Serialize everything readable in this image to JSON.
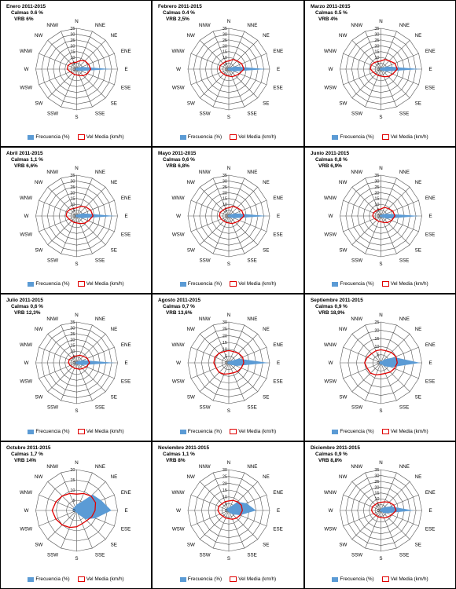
{
  "colors": {
    "frequency": "#5b9bd5",
    "velocity": "#e00000",
    "grid": "#555555"
  },
  "legend": {
    "frequency_label": "Frecuencia (%)",
    "velocity_label": "Vel Media (km/h)"
  },
  "chart_data": [
    {
      "type": "radar",
      "title": "Enero 2011-2015",
      "calmas": "Calmas 0.6 %",
      "vrb": "VRB 6%",
      "directions": [
        "N",
        "NNE",
        "NE",
        "ENE",
        "E",
        "ESE",
        "SE",
        "SSE",
        "S",
        "SSW",
        "SW",
        "WSW",
        "W",
        "WNW",
        "NW",
        "NNW"
      ],
      "rmax": 35,
      "ticks": [
        0,
        5,
        10,
        15,
        20,
        25,
        30,
        35
      ],
      "series": [
        {
          "name": "Frecuencia (%)",
          "values": [
            1,
            1,
            2,
            5,
            30,
            4,
            2,
            1,
            1,
            1,
            1,
            1,
            2,
            1,
            1,
            1
          ]
        },
        {
          "name": "Vel Media (km/h)",
          "values": [
            6,
            8,
            10,
            11,
            12,
            10,
            8,
            6,
            5,
            5,
            5,
            6,
            8,
            8,
            7,
            6
          ]
        }
      ]
    },
    {
      "type": "radar",
      "title": "Febrero 2011-2015",
      "calmas": "Calmas 0.4 %",
      "vrb": "VRB 2,5%",
      "directions": [
        "N",
        "NNE",
        "NE",
        "ENE",
        "E",
        "ESE",
        "SE",
        "SSE",
        "S",
        "SSW",
        "SW",
        "WSW",
        "W",
        "WNW",
        "NW",
        "NNW"
      ],
      "rmax": 35,
      "ticks": [
        0,
        5,
        10,
        15,
        20,
        25,
        30,
        35
      ],
      "series": [
        {
          "name": "Frecuencia (%)",
          "values": [
            1,
            1,
            2,
            6,
            32,
            5,
            2,
            1,
            1,
            1,
            1,
            1,
            1,
            1,
            1,
            1
          ]
        },
        {
          "name": "Vel Media (km/h)",
          "values": [
            7,
            9,
            10,
            12,
            13,
            10,
            8,
            7,
            6,
            6,
            6,
            7,
            8,
            8,
            7,
            7
          ]
        }
      ]
    },
    {
      "type": "radar",
      "title": "Marzo 2011-2015",
      "calmas": "Calmas 0.5 %",
      "vrb": "VRB 4%",
      "directions": [
        "N",
        "NNE",
        "NE",
        "ENE",
        "E",
        "ESE",
        "SE",
        "SSE",
        "S",
        "SSW",
        "SW",
        "WSW",
        "W",
        "WNW",
        "NW",
        "NNW"
      ],
      "rmax": 35,
      "ticks": [
        0,
        5,
        10,
        15,
        20,
        25,
        30,
        35
      ],
      "series": [
        {
          "name": "Frecuencia (%)",
          "values": [
            1,
            1,
            2,
            6,
            34,
            5,
            2,
            1,
            1,
            1,
            1,
            1,
            1,
            1,
            1,
            1
          ]
        },
        {
          "name": "Vel Media (km/h)",
          "values": [
            7,
            9,
            10,
            13,
            14,
            11,
            9,
            7,
            6,
            6,
            6,
            7,
            9,
            9,
            8,
            7
          ]
        }
      ]
    },
    {
      "type": "radar",
      "title": "Abril 2011-2015",
      "calmas": "Calmas 1,1 %",
      "vrb": "VRB 6,6%",
      "directions": [
        "N",
        "NNE",
        "NE",
        "ENE",
        "E",
        "ESE",
        "SE",
        "SSE",
        "S",
        "SSW",
        "SW",
        "WSW",
        "W",
        "WNW",
        "NW",
        "NNW"
      ],
      "rmax": 35,
      "ticks": [
        0,
        5,
        10,
        15,
        20,
        25,
        30,
        35
      ],
      "series": [
        {
          "name": "Frecuencia (%)",
          "values": [
            1,
            1,
            2,
            6,
            33,
            5,
            2,
            1,
            1,
            1,
            1,
            1,
            1,
            1,
            1,
            1
          ]
        },
        {
          "name": "Vel Media (km/h)",
          "values": [
            7,
            9,
            11,
            13,
            14,
            11,
            9,
            7,
            6,
            6,
            6,
            7,
            9,
            9,
            8,
            7
          ]
        }
      ]
    },
    {
      "type": "radar",
      "title": "Mayo 2011-2015",
      "calmas": "Calmas 0,6 %",
      "vrb": "VRB 6,8%",
      "directions": [
        "N",
        "NNE",
        "NE",
        "ENE",
        "E",
        "ESE",
        "SE",
        "SSE",
        "S",
        "SSW",
        "SW",
        "WSW",
        "W",
        "WNW",
        "NW",
        "NNW"
      ],
      "rmax": 35,
      "ticks": [
        0,
        5,
        10,
        15,
        20,
        25,
        30,
        35
      ],
      "series": [
        {
          "name": "Frecuencia (%)",
          "values": [
            1,
            1,
            2,
            6,
            33,
            5,
            2,
            1,
            1,
            1,
            1,
            1,
            1,
            1,
            1,
            1
          ]
        },
        {
          "name": "Vel Media (km/h)",
          "values": [
            7,
            9,
            10,
            12,
            13,
            10,
            8,
            7,
            6,
            6,
            6,
            7,
            8,
            8,
            7,
            7
          ]
        }
      ]
    },
    {
      "type": "radar",
      "title": "Junio 2011-2015",
      "calmas": "Calmas 0,8 %",
      "vrb": "VRB 6,9%",
      "directions": [
        "N",
        "NNE",
        "NE",
        "ENE",
        "E",
        "ESE",
        "SE",
        "SSE",
        "S",
        "SSW",
        "SW",
        "WSW",
        "W",
        "WNW",
        "NW",
        "NNW"
      ],
      "rmax": 35,
      "ticks": [
        0,
        5,
        10,
        15,
        20,
        25,
        30,
        35
      ],
      "series": [
        {
          "name": "Frecuencia (%)",
          "values": [
            1,
            1,
            2,
            5,
            33,
            6,
            2,
            1,
            1,
            1,
            1,
            1,
            1,
            1,
            1,
            1
          ]
        },
        {
          "name": "Vel Media (km/h)",
          "values": [
            6,
            8,
            9,
            11,
            12,
            10,
            8,
            6,
            5,
            5,
            5,
            6,
            7,
            7,
            6,
            6
          ]
        }
      ]
    },
    {
      "type": "radar",
      "title": "Julio 2011-2015",
      "calmas": "Calmas 0,6 %",
      "vrb": "VRB 12,3%",
      "directions": [
        "N",
        "NNE",
        "NE",
        "ENE",
        "E",
        "ESE",
        "SE",
        "SSE",
        "S",
        "SSW",
        "SW",
        "WSW",
        "W",
        "WNW",
        "NW",
        "NNW"
      ],
      "rmax": 35,
      "ticks": [
        0,
        5,
        10,
        15,
        20,
        25,
        30,
        35
      ],
      "series": [
        {
          "name": "Frecuencia (%)",
          "values": [
            1,
            1,
            2,
            6,
            33,
            5,
            2,
            1,
            1,
            1,
            1,
            1,
            1,
            1,
            1,
            1
          ]
        },
        {
          "name": "Vel Media (km/h)",
          "values": [
            6,
            7,
            8,
            10,
            11,
            9,
            7,
            6,
            5,
            5,
            5,
            6,
            7,
            7,
            6,
            6
          ]
        }
      ]
    },
    {
      "type": "radar",
      "title": "Agosto 2011-2015",
      "calmas": "Calmas 0,7 %",
      "vrb": "VRB 13,6%",
      "directions": [
        "N",
        "NNE",
        "NE",
        "ENE",
        "E",
        "ESE",
        "SE",
        "SSE",
        "S",
        "SSW",
        "SW",
        "WSW",
        "W",
        "WNW",
        "NW",
        "NNW"
      ],
      "rmax": 30,
      "ticks": [
        0,
        5,
        10,
        15,
        20,
        25,
        30
      ],
      "series": [
        {
          "name": "Frecuencia (%)",
          "values": [
            1,
            1,
            2,
            8,
            29,
            6,
            2,
            1,
            1,
            1,
            1,
            1,
            1,
            1,
            1,
            1
          ]
        },
        {
          "name": "Vel Media (km/h)",
          "values": [
            9,
            9,
            10,
            11,
            11,
            10,
            9,
            8,
            8,
            9,
            10,
            10,
            11,
            11,
            10,
            9
          ]
        }
      ]
    },
    {
      "type": "radar",
      "title": "Septiembre 2011-2015",
      "calmas": "Calmas 0,9 %",
      "vrb": "VRB 18,9%",
      "directions": [
        "N",
        "NNE",
        "NE",
        "ENE",
        "E",
        "ESE",
        "SE",
        "SSE",
        "S",
        "SSW",
        "SW",
        "WSW",
        "W",
        "WNW",
        "NW",
        "NNW"
      ],
      "rmax": 25,
      "ticks": [
        0,
        5,
        10,
        15,
        20,
        25
      ],
      "series": [
        {
          "name": "Frecuencia (%)",
          "values": [
            1,
            1,
            3,
            9,
            24,
            7,
            3,
            1,
            1,
            1,
            1,
            1,
            1,
            1,
            1,
            1
          ]
        },
        {
          "name": "Vel Media (km/h)",
          "values": [
            8,
            8,
            9,
            10,
            10,
            9,
            8,
            7,
            7,
            8,
            9,
            9,
            10,
            9,
            8,
            8
          ]
        }
      ]
    },
    {
      "type": "radar",
      "title": "Octubre 2011-2015",
      "calmas": "Calmas 1,7 %",
      "vrb": "VRB 14%",
      "directions": [
        "N",
        "NNE",
        "NE",
        "ENE",
        "E",
        "ESE",
        "SE",
        "SSE",
        "S",
        "SSW",
        "SW",
        "WSW",
        "W",
        "WNW",
        "NW",
        "NNW"
      ],
      "rmax": 20,
      "ticks": [
        0,
        5,
        10,
        15,
        20
      ],
      "series": [
        {
          "name": "Frecuencia (%)",
          "values": [
            3,
            4,
            11,
            13,
            17,
            10,
            6,
            2,
            1,
            1,
            1,
            1,
            2,
            2,
            2,
            2
          ]
        },
        {
          "name": "Vel Media (km/h)",
          "values": [
            8,
            9,
            10,
            10,
            9,
            8,
            7,
            7,
            8,
            9,
            10,
            11,
            12,
            11,
            10,
            9
          ]
        }
      ]
    },
    {
      "type": "radar",
      "title": "Noviembre 2011-2015",
      "calmas": "Calmas 1,1 %",
      "vrb": "VRB 8%",
      "directions": [
        "N",
        "NNE",
        "NE",
        "ENE",
        "E",
        "ESE",
        "SE",
        "SSE",
        "S",
        "SSW",
        "SW",
        "WSW",
        "W",
        "WNW",
        "NW",
        "NNW"
      ],
      "rmax": 30,
      "ticks": [
        0,
        5,
        10,
        15,
        20,
        25,
        30
      ],
      "series": [
        {
          "name": "Frecuencia (%)",
          "values": [
            2,
            3,
            9,
            14,
            20,
            9,
            4,
            2,
            1,
            1,
            1,
            1,
            2,
            2,
            2,
            2
          ]
        },
        {
          "name": "Vel Media (km/h)",
          "values": [
            7,
            8,
            9,
            10,
            10,
            9,
            8,
            7,
            6,
            6,
            6,
            7,
            8,
            8,
            7,
            7
          ]
        }
      ]
    },
    {
      "type": "radar",
      "title": "Diciembre 2011-2015",
      "calmas": "Calmas 0,9 %",
      "vrb": "VRB 8,8%",
      "directions": [
        "N",
        "NNE",
        "NE",
        "ENE",
        "E",
        "ESE",
        "SE",
        "SSE",
        "S",
        "SSW",
        "SW",
        "WSW",
        "W",
        "WNW",
        "NW",
        "NNW"
      ],
      "rmax": 35,
      "ticks": [
        0,
        5,
        10,
        15,
        20,
        25,
        30,
        35
      ],
      "series": [
        {
          "name": "Frecuencia (%)",
          "values": [
            1,
            2,
            4,
            9,
            28,
            6,
            3,
            1,
            1,
            1,
            1,
            1,
            1,
            1,
            1,
            1
          ]
        },
        {
          "name": "Vel Media (km/h)",
          "values": [
            7,
            8,
            10,
            12,
            13,
            10,
            8,
            7,
            6,
            6,
            6,
            7,
            8,
            8,
            7,
            7
          ]
        }
      ]
    }
  ]
}
